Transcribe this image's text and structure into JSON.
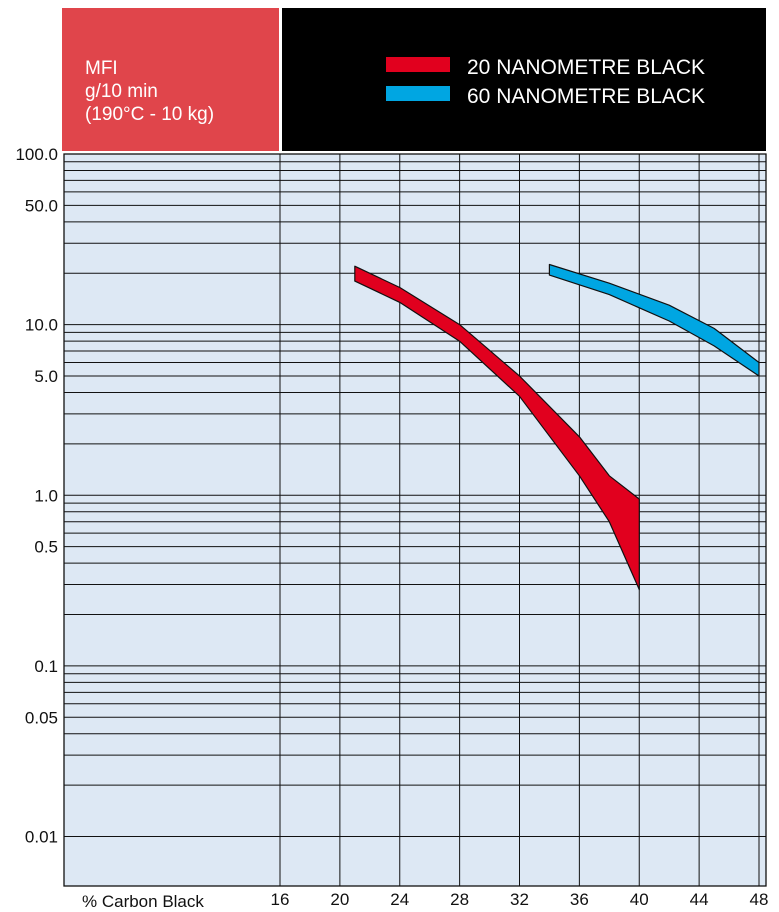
{
  "chart_data": {
    "type": "area",
    "ylabel_lines": [
      "MFI",
      "g/10 min",
      "(190°C - 10 kg)"
    ],
    "xlabel": "% Carbon Black",
    "y_scale": "log",
    "ylim": [
      0.01,
      100
    ],
    "y_tick_labels": [
      {
        "value": 100,
        "label": "100.0"
      },
      {
        "value": 50,
        "label": "50.0"
      },
      {
        "value": 10,
        "label": "10.0"
      },
      {
        "value": 5,
        "label": "5.0"
      },
      {
        "value": 1,
        "label": "1.0"
      },
      {
        "value": 0.5,
        "label": "0.5"
      },
      {
        "value": 0.1,
        "label": "0.1"
      },
      {
        "value": 0.05,
        "label": "0.05"
      },
      {
        "value": 0.01,
        "label": "0.01"
      }
    ],
    "x_ticks": [
      16,
      20,
      24,
      28,
      32,
      36,
      40,
      44,
      48
    ],
    "grid": true,
    "legend_placement": "top-right",
    "background_color": "#dde8f4",
    "series": [
      {
        "name": "20 NANOMETRE BLACK",
        "color": "#e1001e",
        "upper": [
          [
            21,
            22
          ],
          [
            24,
            16.5
          ],
          [
            28,
            10
          ],
          [
            32,
            5
          ],
          [
            36,
            2.2
          ],
          [
            38,
            1.3
          ],
          [
            40,
            0.95
          ]
        ],
        "lower": [
          [
            21,
            18
          ],
          [
            24,
            13.5
          ],
          [
            28,
            8
          ],
          [
            32,
            3.8
          ],
          [
            36,
            1.3
          ],
          [
            38,
            0.7
          ],
          [
            40,
            0.28
          ]
        ]
      },
      {
        "name": "60 NANOMETRE BLACK",
        "color": "#00a6e2",
        "upper": [
          [
            34,
            22.5
          ],
          [
            38,
            17.5
          ],
          [
            42,
            13
          ],
          [
            45,
            9.5
          ],
          [
            48,
            6
          ]
        ],
        "lower": [
          [
            34,
            19.5
          ],
          [
            38,
            15
          ],
          [
            42,
            10.5
          ],
          [
            45,
            7.5
          ],
          [
            48,
            5
          ]
        ]
      }
    ]
  },
  "colors": {
    "header_left": "#e0454b",
    "header_right": "#000000",
    "grid_line": "#111111"
  }
}
